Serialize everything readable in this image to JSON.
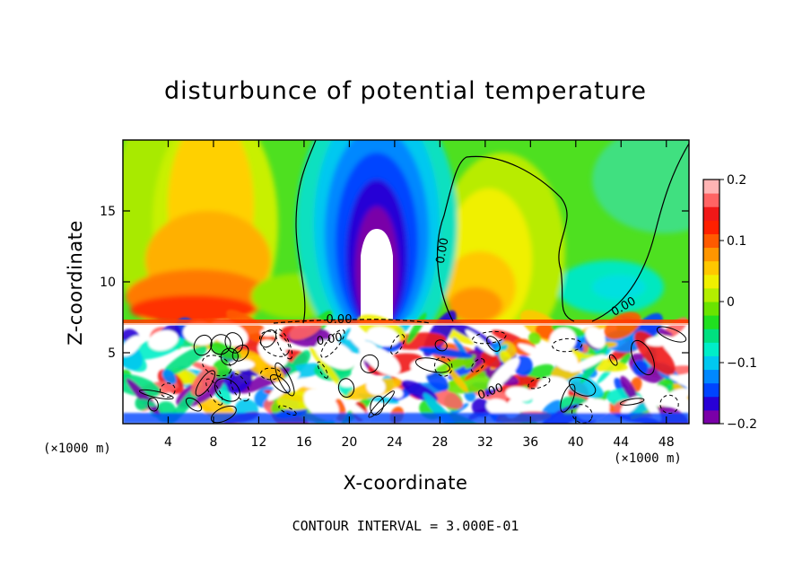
{
  "title": "disturbunce of potential temperature",
  "footnote": "CONTOUR INTERVAL = 3.000E-01",
  "x_unit_left": "(×1000 m)",
  "x_unit_right": "(×1000 m)",
  "chart_data": {
    "type": "heatmap",
    "title": "disturbunce of potential temperature",
    "xlabel": "X-coordinate",
    "ylabel": "Z-coordinate",
    "x_unit": "×1000 m",
    "xlim": [
      0,
      50
    ],
    "ylim": [
      0,
      20
    ],
    "x_ticks": [
      4,
      8,
      12,
      16,
      20,
      24,
      28,
      32,
      36,
      40,
      44,
      48
    ],
    "y_ticks": [
      5,
      10,
      15
    ],
    "colorbar": {
      "range": [
        -0.2,
        0.2
      ],
      "ticks": [
        0.2,
        0.1,
        0,
        -0.1,
        -0.2
      ],
      "tick_labels": [
        "0.2",
        "0.1",
        "0",
        "−0.1",
        "−0.2"
      ],
      "colors": [
        "#7a00a8",
        "#2800d6",
        "#0044ff",
        "#0088ff",
        "#00c8f0",
        "#00eec8",
        "#00e080",
        "#20e020",
        "#6ae400",
        "#b4ee00",
        "#f0f000",
        "#ffc800",
        "#ff9600",
        "#ff5a00",
        "#ff2000",
        "#f01818",
        "#ff6464",
        "#ffb4b4"
      ]
    },
    "contour_interval": 0.3,
    "contour_labels": [
      "0.00",
      "0.00",
      "0.00",
      "0.00",
      "0.00"
    ],
    "grid": false,
    "legend": "right colorbar"
  }
}
